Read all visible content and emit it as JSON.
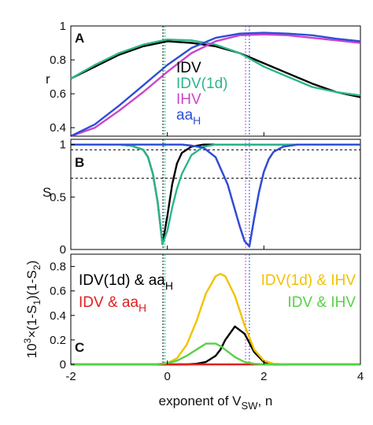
{
  "chart_data": [
    {
      "panel": "A",
      "type": "line",
      "ylabel": "r",
      "xlim": [
        -2,
        4
      ],
      "ylim": [
        0.35,
        1.0
      ],
      "yticks": [
        "0.4",
        "0.6",
        "0.8",
        "1"
      ],
      "x": [
        -2,
        -1.5,
        -1,
        -0.5,
        0,
        0.5,
        1,
        1.5,
        2,
        2.5,
        3,
        3.5,
        4
      ],
      "series": [
        {
          "name": "IDV",
          "color": "#000000",
          "values": [
            0.69,
            0.76,
            0.83,
            0.88,
            0.91,
            0.9,
            0.88,
            0.84,
            0.78,
            0.72,
            0.66,
            0.61,
            0.58
          ]
        },
        {
          "name": "IDV(1d)",
          "color": "#2bb58c",
          "values": [
            0.69,
            0.77,
            0.84,
            0.89,
            0.92,
            0.915,
            0.89,
            0.84,
            0.76,
            0.7,
            0.64,
            0.61,
            0.59
          ]
        },
        {
          "name": "IHV",
          "color": "#cc44cc",
          "values": [
            0.32,
            0.4,
            0.5,
            0.61,
            0.73,
            0.84,
            0.91,
            0.945,
            0.95,
            0.945,
            0.93,
            0.915,
            0.9
          ]
        },
        {
          "name": "aa_H",
          "color": "#2b4fd6",
          "values": [
            0.33,
            0.42,
            0.53,
            0.65,
            0.77,
            0.87,
            0.93,
            0.955,
            0.96,
            0.955,
            0.945,
            0.925,
            0.91
          ]
        }
      ],
      "vlines": [
        {
          "x": -0.09,
          "color": "#000000"
        },
        {
          "x": -0.05,
          "color": "#2bb58c"
        },
        {
          "x": 1.62,
          "color": "#cc44cc"
        },
        {
          "x": 1.7,
          "color": "#2b4fd6"
        }
      ],
      "legend_labels": [
        "IDV",
        "IDV(1d)",
        "IHV",
        "aa",
        "H"
      ]
    },
    {
      "panel": "B",
      "type": "line",
      "ylabel": "S",
      "xlim": [
        -2,
        4
      ],
      "ylim": [
        0,
        1.05
      ],
      "yticks": [
        "0",
        "0.5",
        "1"
      ],
      "x": [
        -2,
        -1.5,
        -1,
        -0.75,
        -0.5,
        -0.4,
        -0.3,
        -0.2,
        -0.1,
        0,
        0.1,
        0.2,
        0.3,
        0.5,
        0.75,
        1,
        1.25,
        1.4,
        1.5,
        1.6,
        1.7,
        1.8,
        1.9,
        2.0,
        2.1,
        2.2,
        2.4,
        2.7,
        3,
        3.5,
        4
      ],
      "series": [
        {
          "name": "IDV",
          "color": "#000000",
          "values": [
            1,
            1,
            1,
            0.99,
            0.95,
            0.88,
            0.72,
            0.45,
            0.05,
            0.32,
            0.62,
            0.82,
            0.92,
            0.98,
            1,
            1,
            1,
            1,
            1,
            1,
            1,
            1,
            1,
            1,
            1,
            1,
            1,
            1,
            1,
            1,
            1
          ]
        },
        {
          "name": "IDV(1d)",
          "color": "#2bb58c",
          "values": [
            1,
            1,
            1,
            0.99,
            0.95,
            0.88,
            0.72,
            0.45,
            0.05,
            0.18,
            0.4,
            0.58,
            0.72,
            0.9,
            0.98,
            1,
            1,
            1,
            1,
            1,
            1,
            1,
            1,
            1,
            1,
            1,
            1,
            1,
            1,
            1,
            1
          ]
        },
        {
          "name": "IHV",
          "color": "#cc44cc",
          "values": [
            1,
            1,
            1,
            1,
            1,
            1,
            1,
            1,
            1,
            1,
            1,
            1,
            1,
            0.99,
            0.97,
            0.88,
            0.62,
            0.38,
            0.22,
            0.08,
            0.03,
            0.3,
            0.55,
            0.74,
            0.86,
            0.93,
            0.98,
            1,
            1,
            1,
            1
          ]
        },
        {
          "name": "aa_H",
          "color": "#2b4fd6",
          "values": [
            1,
            1,
            1,
            1,
            1,
            1,
            1,
            1,
            1,
            1,
            1,
            1,
            1,
            0.99,
            0.97,
            0.88,
            0.62,
            0.38,
            0.22,
            0.08,
            0.03,
            0.3,
            0.55,
            0.74,
            0.86,
            0.93,
            0.98,
            1,
            1,
            1,
            1
          ]
        }
      ],
      "hlines": [
        0.95,
        0.68
      ],
      "vlines": [
        {
          "x": -0.09,
          "color": "#000000"
        },
        {
          "x": -0.05,
          "color": "#2bb58c"
        },
        {
          "x": 1.62,
          "color": "#cc44cc"
        },
        {
          "x": 1.7,
          "color": "#2b4fd6"
        }
      ]
    },
    {
      "panel": "C",
      "type": "line",
      "ylabel_parts": [
        "10",
        "3",
        "×(1-S",
        "1",
        ")(1-S",
        "2",
        ")"
      ],
      "xlabel_parts": [
        "exponent of V",
        "SW",
        ", n"
      ],
      "xlim": [
        -2,
        4
      ],
      "ylim": [
        0,
        0.9
      ],
      "xticks": [
        "-2",
        "0",
        "2",
        "4"
      ],
      "yticks": [
        "0",
        "0.2",
        "0.4",
        "0.6",
        "0.8"
      ],
      "x": [
        -2,
        -1,
        -0.5,
        -0.25,
        0,
        0.2,
        0.4,
        0.6,
        0.8,
        1.0,
        1.1,
        1.2,
        1.4,
        1.6,
        1.8,
        2.0,
        2.2,
        2.5,
        3,
        4
      ],
      "series": [
        {
          "name": "IDV(1d) & aa_H",
          "color": "#000000",
          "values": [
            0,
            0,
            0,
            0,
            0,
            0,
            0,
            0.005,
            0.02,
            0.07,
            0.12,
            0.2,
            0.31,
            0.25,
            0.1,
            0.02,
            0,
            0,
            0,
            0
          ]
        },
        {
          "name": "IDV & aa_H",
          "color": "#e02020",
          "values": [
            0,
            0,
            0,
            0,
            0,
            0,
            0,
            0,
            0,
            0,
            0,
            0,
            0,
            0,
            0,
            0,
            0,
            0,
            0,
            0
          ]
        },
        {
          "name": "IDV(1d) & IHV",
          "color": "#f2c200",
          "values": [
            0,
            0,
            0,
            0,
            0.01,
            0.05,
            0.16,
            0.35,
            0.58,
            0.72,
            0.74,
            0.72,
            0.56,
            0.32,
            0.12,
            0.03,
            0.005,
            0,
            0,
            0
          ]
        },
        {
          "name": "IDV & IHV",
          "color": "#56d246",
          "values": [
            0,
            0,
            0,
            0,
            0.01,
            0.03,
            0.07,
            0.12,
            0.17,
            0.17,
            0.15,
            0.12,
            0.06,
            0.02,
            0.005,
            0,
            0,
            0,
            0,
            0
          ]
        }
      ],
      "vlines": [
        {
          "x": -0.09,
          "color": "#000000"
        },
        {
          "x": -0.05,
          "color": "#2bb58c"
        },
        {
          "x": 1.62,
          "color": "#cc44cc"
        },
        {
          "x": 1.7,
          "color": "#2b4fd6"
        }
      ],
      "legend": [
        {
          "base": "IDV(1d) & aa",
          "sub": "H",
          "color": "#000000"
        },
        {
          "base": "IDV & aa",
          "sub": "H",
          "color": "#e02020"
        },
        {
          "base": "IDV(1d) & IHV",
          "sub": "",
          "color": "#f2c200"
        },
        {
          "base": "IDV & IHV",
          "sub": "",
          "color": "#56d246"
        }
      ]
    }
  ]
}
